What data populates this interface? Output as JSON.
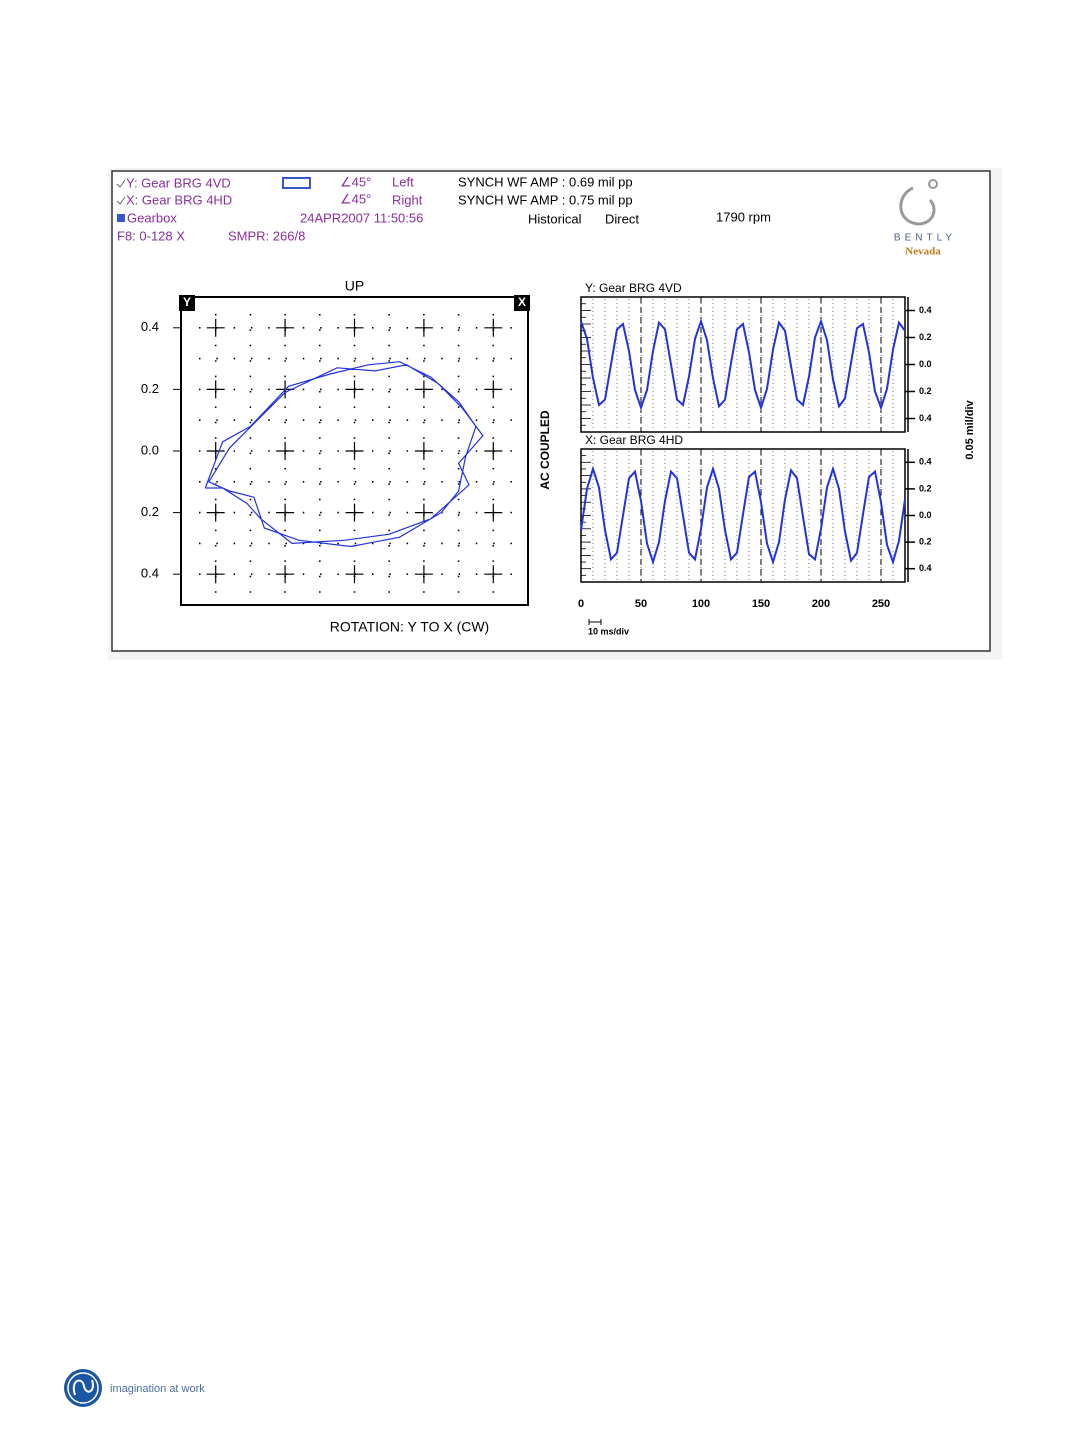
{
  "header": {
    "probe_y": "Y: Gear BRG 4VD",
    "angle_y": "∠45°",
    "side_y": "Left",
    "amp_y": "SYNCH WF AMP : 0.69 mil pp",
    "probe_x": "X: Gear BRG 4HD",
    "angle_x": "∠45°",
    "side_x": "Right",
    "amp_x": "SYNCH WF AMP : 0.75 mil pp",
    "machine": "Gearbox",
    "timestamp": "24APR2007 11:50:56",
    "mode": "Historical",
    "filter": "Direct",
    "speed": "1790 rpm",
    "range": "F8: 0-128 X",
    "sampling": "SMPR: 266/8"
  },
  "logo": {
    "brand": "BENTLY",
    "sub": "Nevada"
  },
  "labels": {
    "coupling": "AC COUPLED",
    "amp_scale": "0.05 mil/div",
    "time_scale": "10 ms/div"
  },
  "footer": {
    "tagline": "imagination at work"
  },
  "chart_data": [
    {
      "type": "orbit",
      "title": "UP",
      "x_label": "ROTATION: Y TO X (CW)",
      "corner_labels": [
        "Y",
        "X"
      ],
      "color": "#2233dd",
      "xlim": [
        -0.5,
        0.5
      ],
      "ylim": [
        -0.5,
        0.5
      ],
      "xticks": [
        -0.4,
        -0.2,
        0,
        0.2,
        0.4
      ],
      "yticks": [
        {
          "value": 0.4,
          "label": "0.4"
        },
        {
          "value": 0.2,
          "label": "0.2"
        },
        {
          "value": 0,
          "label": "0.0"
        },
        {
          "value": -0.2,
          "label": "0.2"
        },
        {
          "value": -0.4,
          "label": "0.4"
        }
      ],
      "x": [
        -0.43,
        -0.38,
        -0.3,
        -0.19,
        -0.07,
        0.04,
        0.13,
        0.22,
        0.3,
        0.35,
        0.32,
        0.3,
        0.25,
        0.13,
        -0.01,
        -0.16,
        -0.26,
        -0.29,
        -0.36,
        -0.42,
        -0.36,
        -0.28,
        -0.2,
        -0.05,
        0.06,
        0.15,
        0.24,
        0.31,
        0.37,
        0.3,
        0.33,
        0.22,
        0.1,
        -0.03,
        -0.18,
        -0.27,
        -0.31,
        -0.38,
        -0.43
      ],
      "y": [
        -0.12,
        0.03,
        0.08,
        0.21,
        0.25,
        0.28,
        0.29,
        0.24,
        0.16,
        0.08,
        -0.02,
        -0.13,
        -0.2,
        -0.28,
        -0.31,
        -0.29,
        -0.25,
        -0.15,
        -0.13,
        -0.1,
        0.01,
        0.1,
        0.19,
        0.27,
        0.26,
        0.28,
        0.22,
        0.14,
        0.05,
        -0.04,
        -0.11,
        -0.22,
        -0.27,
        -0.29,
        -0.3,
        -0.22,
        -0.17,
        -0.12,
        -0.12
      ]
    },
    {
      "type": "line",
      "title": "Y: Gear BRG 4VD",
      "color": "#2233dd",
      "xlim": [
        0,
        270
      ],
      "ylim": [
        -0.5,
        0.5
      ],
      "xticks": [
        0,
        50,
        100,
        150,
        200,
        250
      ],
      "show_xtick_labels": false,
      "yticks": [
        {
          "value": 0.4,
          "label": "0.4"
        },
        {
          "value": 0.2,
          "label": "0.2"
        },
        {
          "value": 0,
          "label": "0.0"
        },
        {
          "value": -0.2,
          "label": "0.2"
        },
        {
          "value": -0.4,
          "label": "0.4"
        }
      ],
      "x": [
        0,
        5,
        10,
        15,
        20,
        25,
        30,
        35,
        40,
        45,
        50,
        55,
        60,
        65,
        70,
        75,
        80,
        85,
        90,
        95,
        100,
        105,
        110,
        115,
        120,
        125,
        130,
        135,
        140,
        145,
        150,
        155,
        160,
        165,
        170,
        175,
        180,
        185,
        190,
        195,
        200,
        205,
        210,
        215,
        220,
        225,
        230,
        235,
        240,
        245,
        250,
        255,
        260,
        265,
        270
      ],
      "values": [
        0.32,
        0.19,
        -0.1,
        -0.3,
        -0.26,
        0.0,
        0.26,
        0.3,
        0.1,
        -0.19,
        -0.32,
        -0.19,
        0.1,
        0.31,
        0.26,
        0.0,
        -0.26,
        -0.3,
        -0.09,
        0.19,
        0.32,
        0.18,
        -0.1,
        -0.31,
        -0.26,
        0.01,
        0.26,
        0.3,
        0.09,
        -0.19,
        -0.32,
        -0.18,
        0.11,
        0.31,
        0.25,
        -0.01,
        -0.26,
        -0.3,
        -0.09,
        0.2,
        0.32,
        0.18,
        -0.11,
        -0.31,
        -0.25,
        0.01,
        0.27,
        0.3,
        0.09,
        -0.2,
        -0.32,
        -0.18,
        0.11,
        0.31,
        0.25
      ]
    },
    {
      "type": "line",
      "title": "X: Gear BRG 4HD",
      "color": "#2233dd",
      "xlim": [
        0,
        270
      ],
      "ylim": [
        -0.5,
        0.5
      ],
      "xticks": [
        0,
        50,
        100,
        150,
        200,
        250
      ],
      "show_xtick_labels": true,
      "yticks": [
        {
          "value": 0.4,
          "label": "0.4"
        },
        {
          "value": 0.2,
          "label": "0.2"
        },
        {
          "value": 0,
          "label": "0.0"
        },
        {
          "value": -0.2,
          "label": "0.2"
        },
        {
          "value": -0.4,
          "label": "0.4"
        }
      ],
      "x": [
        0,
        5,
        10,
        15,
        20,
        25,
        30,
        35,
        40,
        45,
        50,
        55,
        60,
        65,
        70,
        75,
        80,
        85,
        90,
        95,
        100,
        105,
        110,
        115,
        120,
        125,
        130,
        135,
        140,
        145,
        150,
        155,
        160,
        165,
        170,
        175,
        180,
        185,
        190,
        195,
        200,
        205,
        210,
        215,
        220,
        225,
        230,
        235,
        240,
        245,
        250,
        255,
        260,
        265,
        270
      ],
      "values": [
        -0.11,
        0.2,
        0.35,
        0.21,
        -0.11,
        -0.33,
        -0.28,
        0.0,
        0.28,
        0.33,
        0.11,
        -0.21,
        -0.35,
        -0.2,
        0.11,
        0.33,
        0.28,
        0.0,
        -0.28,
        -0.33,
        -0.1,
        0.21,
        0.35,
        0.2,
        -0.11,
        -0.33,
        -0.28,
        0.01,
        0.29,
        0.33,
        0.1,
        -0.21,
        -0.35,
        -0.2,
        0.12,
        0.34,
        0.28,
        -0.01,
        -0.29,
        -0.33,
        -0.1,
        0.21,
        0.35,
        0.2,
        -0.12,
        -0.34,
        -0.28,
        0.01,
        0.29,
        0.33,
        0.1,
        -0.22,
        -0.35,
        -0.19,
        0.12
      ]
    }
  ]
}
